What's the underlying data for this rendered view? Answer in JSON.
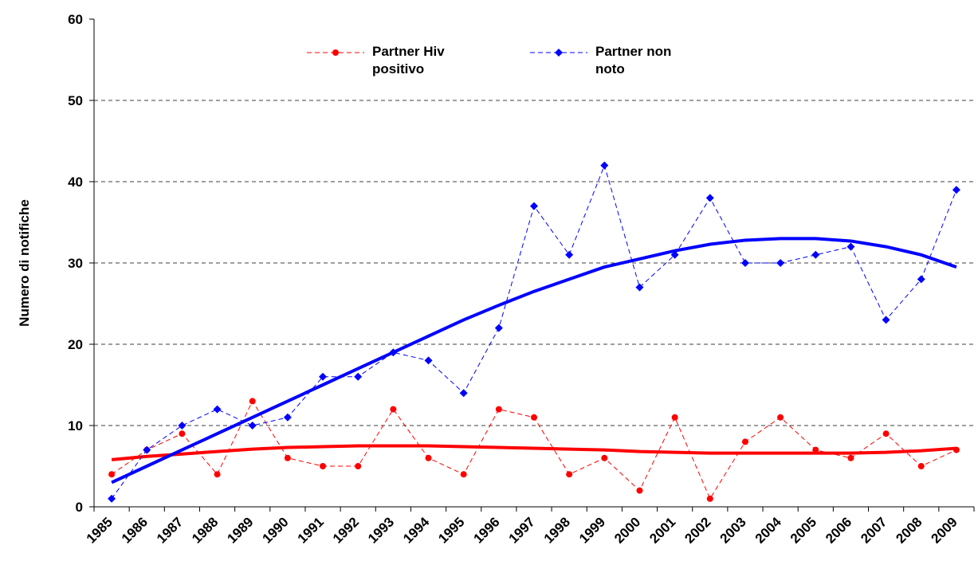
{
  "chart_data": {
    "type": "line",
    "y_label": "Numero di notifiche",
    "categories": [
      "1985",
      "1986",
      "1987",
      "1988",
      "1989",
      "1990",
      "1991",
      "1992",
      "1993",
      "1994",
      "1995",
      "1996",
      "1997",
      "1998",
      "1999",
      "2000",
      "2001",
      "2002",
      "2003",
      "2004",
      "2005",
      "2006",
      "2007",
      "2008",
      "2009"
    ],
    "series": [
      {
        "name": "Partner Hiv positivo",
        "color": "#ff0000",
        "marker": "circle",
        "values": [
          4,
          7,
          9,
          4,
          13,
          6,
          5,
          5,
          12,
          6,
          4,
          12,
          11,
          4,
          6,
          2,
          11,
          1,
          8,
          11,
          7,
          6,
          9,
          5,
          7
        ],
        "trend": [
          5.8,
          6.2,
          6.5,
          6.8,
          7.1,
          7.3,
          7.4,
          7.5,
          7.5,
          7.5,
          7.4,
          7.3,
          7.2,
          7.1,
          7.0,
          6.8,
          6.7,
          6.6,
          6.6,
          6.6,
          6.6,
          6.6,
          6.7,
          6.9,
          7.2
        ]
      },
      {
        "name": "Partner non noto",
        "color": "#0000ff",
        "marker": "diamond",
        "values": [
          1,
          7,
          10,
          12,
          10,
          11,
          16,
          16,
          19,
          18,
          14,
          22,
          37,
          31,
          42,
          27,
          31,
          38,
          30,
          30,
          31,
          32,
          23,
          28,
          39
        ],
        "trend": [
          3,
          5,
          7,
          9,
          11,
          13,
          15,
          17,
          19,
          21,
          23,
          24.8,
          26.5,
          28,
          29.5,
          30.5,
          31.5,
          32.3,
          32.8,
          33,
          33,
          32.7,
          32,
          31,
          29.5
        ]
      }
    ],
    "ylim": [
      0,
      60
    ],
    "yticks": [
      0,
      10,
      20,
      30,
      40,
      50,
      60
    ],
    "grid": true
  }
}
